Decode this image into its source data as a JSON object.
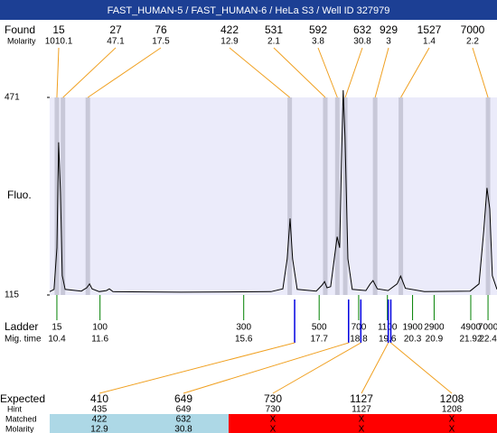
{
  "title": "FAST_HUMAN-5 / FAST_HUMAN-6 / HeLa S3 / Well ID 327979",
  "found": {
    "label": "Found",
    "molarity_label": "Molarity",
    "sizes": [
      15,
      27,
      76,
      422,
      531,
      592,
      632,
      929,
      1527,
      7000
    ],
    "molarity": [
      1010.1,
      47.1,
      17.5,
      12.9,
      2.1,
      3.8,
      30.8,
      3,
      1.4,
      2.2
    ]
  },
  "chart_data": {
    "type": "line",
    "y_label": "Fluo.",
    "ylim": [
      115,
      471
    ],
    "yticks": [
      115,
      471
    ],
    "xlim": [
      10.2,
      22.65
    ],
    "series": [
      {
        "color": "#000000",
        "x": [
          10.2,
          10.32,
          10.4,
          10.45,
          10.5,
          10.55,
          10.63,
          11.08,
          11.23,
          11.31,
          11.38,
          11.58,
          11.78,
          11.86,
          11.96,
          13.85,
          16.36,
          16.69,
          16.81,
          16.89,
          16.96,
          17.09,
          17.62,
          17.77,
          17.85,
          17.92,
          18.02,
          18.12,
          18.2,
          18.27,
          18.32,
          18.37,
          18.42,
          18.5,
          18.62,
          19.0,
          19.12,
          19.2,
          19.32,
          19.62,
          19.87,
          19.97,
          20.1,
          20.63,
          21.9,
          22.15,
          22.28,
          22.37,
          22.45,
          22.52,
          22.65
        ],
        "values": [
          121,
          125,
          200,
          390,
          300,
          150,
          125,
          122,
          128,
          135,
          126,
          121,
          123,
          126,
          121,
          120,
          121,
          126,
          180,
          253,
          180,
          125,
          122,
          132,
          139,
          128,
          130,
          180,
          220,
          200,
          350,
          484,
          400,
          180,
          125,
          123,
          135,
          141,
          126,
          123,
          135,
          149,
          127,
          121,
          122,
          135,
          230,
          308,
          270,
          150,
          125
        ]
      }
    ]
  },
  "ladder": {
    "label": "Ladder",
    "time_label": "Mig. time",
    "sizes": [
      15,
      100,
      300,
      500,
      700,
      1100,
      1900,
      2900,
      4900,
      7000
    ],
    "times": [
      10.4,
      11.6,
      15.6,
      17.7,
      18.8,
      19.6,
      20.3,
      20.9,
      21.92,
      22.4
    ]
  },
  "expected": {
    "label": "Expected",
    "hint_label": "Hint",
    "matched_label": "Matched",
    "molarity_label": "Molarity",
    "expected": [
      410,
      649,
      730,
      1127,
      1208
    ],
    "hint": [
      435,
      649,
      730,
      1127,
      1208
    ],
    "matched": [
      422,
      632,
      "X",
      "X",
      "X"
    ],
    "molarity": [
      12.9,
      30.8,
      "X",
      "X",
      "X"
    ]
  }
}
